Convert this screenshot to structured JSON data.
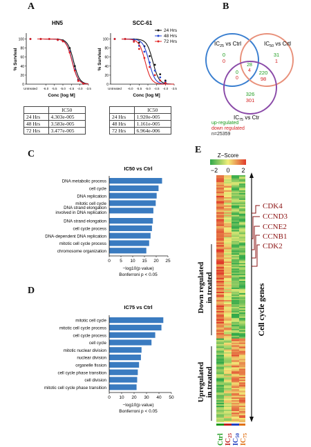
{
  "panel_letters": {
    "a": "A",
    "b": "B",
    "c": "C",
    "d": "D",
    "e": "E"
  },
  "panel_a": {
    "y_label": "% Survival",
    "x_label": "Conc [log M]",
    "untreated_label": "Untreated",
    "y_ticks": [
      "0",
      "20",
      "40",
      "60",
      "80",
      "100"
    ],
    "x_ticks": [
      "-6.0",
      "-5.5",
      "-5.0",
      "-4.5",
      "-4.0",
      "-3.5"
    ],
    "legend": [
      {
        "label": "24 Hrs",
        "color": "#111111"
      },
      {
        "label": "48 Hrs",
        "color": "#1f3fd1"
      },
      {
        "label": "72 Hrs",
        "color": "#e02020"
      }
    ],
    "table_header": "IC50"
  },
  "chart_data": [
    {
      "type": "line",
      "title": "HN5",
      "xlabel": "Conc [log M]",
      "ylabel": "% Survival",
      "ylim": [
        0,
        110
      ],
      "series": [
        {
          "name": "24 Hrs",
          "color": "#111111",
          "log_ic50": -4.366,
          "points": [
            [
              -6.3,
              100
            ],
            [
              -5.8,
              100
            ],
            [
              -5.3,
              99
            ],
            [
              -5.0,
              97
            ],
            [
              -4.6,
              80
            ],
            [
              -4.3,
              40
            ],
            [
              -4.1,
              10
            ],
            [
              -3.8,
              2
            ]
          ]
        },
        {
          "name": "48 Hrs",
          "color": "#1f3fd1",
          "log_ic50": -4.446,
          "points": [
            [
              -6.3,
              100
            ],
            [
              -5.8,
              100
            ],
            [
              -5.3,
              98
            ],
            [
              -5.0,
              95
            ],
            [
              -4.6,
              72
            ],
            [
              -4.3,
              32
            ],
            [
              -4.1,
              8
            ],
            [
              -3.8,
              1
            ]
          ]
        },
        {
          "name": "72 Hrs",
          "color": "#e02020",
          "log_ic50": -4.459,
          "points": [
            [
              -6.3,
              100
            ],
            [
              -5.8,
              100
            ],
            [
              -5.3,
              98
            ],
            [
              -5.0,
              95
            ],
            [
              -4.6,
              70
            ],
            [
              -4.3,
              30
            ],
            [
              -4.1,
              7
            ],
            [
              -3.8,
              1
            ]
          ]
        }
      ],
      "ic50_table": [
        [
          "24 Hrs",
          "4.303e-005"
        ],
        [
          "48 Hrs",
          "3.583e-005"
        ],
        [
          "72 Hrs",
          "3.477e-005"
        ]
      ]
    },
    {
      "type": "line",
      "title": "SCC-61",
      "xlabel": "Conc [log M]",
      "ylabel": "% Survival",
      "ylim": [
        0,
        110
      ],
      "series": [
        {
          "name": "24 Hrs",
          "color": "#111111",
          "log_ic50": -4.717,
          "points": [
            [
              -6.3,
              100
            ],
            [
              -5.8,
              99
            ],
            [
              -5.5,
              92
            ],
            [
              -5.2,
              84
            ],
            [
              -4.9,
              62
            ],
            [
              -4.6,
              43
            ],
            [
              -4.3,
              22
            ],
            [
              -4.0,
              8
            ]
          ]
        },
        {
          "name": "48 Hrs",
          "color": "#1f3fd1",
          "log_ic50": -4.935,
          "points": [
            [
              -6.3,
              100
            ],
            [
              -5.8,
              97
            ],
            [
              -5.5,
              85
            ],
            [
              -5.2,
              72
            ],
            [
              -4.9,
              48
            ],
            [
              -4.6,
              30
            ],
            [
              -4.3,
              15
            ],
            [
              -4.0,
              5
            ]
          ]
        },
        {
          "name": "72 Hrs",
          "color": "#e02020",
          "log_ic50": -5.157,
          "points": [
            [
              -6.3,
              100
            ],
            [
              -5.8,
              94
            ],
            [
              -5.5,
              78
            ],
            [
              -5.2,
              58
            ],
            [
              -4.9,
              38
            ],
            [
              -4.6,
              20
            ],
            [
              -4.3,
              8
            ],
            [
              -4.0,
              3
            ]
          ]
        }
      ],
      "ic50_table": [
        [
          "24 Hrs",
          "1.920e-005"
        ],
        [
          "48 Hrs",
          "1.161e-005"
        ],
        [
          "72 Hrs",
          "6.964e-006"
        ]
      ]
    },
    {
      "type": "bar",
      "title": "IC50 vs Ctrl",
      "xlabel": "−log10(p value)",
      "note": "Bonferroni p < 0.05",
      "xlim": [
        0,
        25
      ],
      "x_ticks": [
        "0",
        "5",
        "10",
        "15",
        "20",
        "25"
      ],
      "categories": [
        "DNA metabolic process",
        "cell cycle",
        "DNA replication",
        "mitotic cell cycle",
        "DNA strand elongation involved in DNA replication",
        "DNA strand elongation",
        "cell cycle process",
        "DNA-dependent DNA replication",
        "mitotic cell cycle process",
        "chromosome organization"
      ],
      "values": [
        22.5,
        21.0,
        20.2,
        19.8,
        18.8,
        18.6,
        18.2,
        17.6,
        17.0,
        15.8
      ]
    },
    {
      "type": "bar",
      "title": "IC75 vs Ctrl",
      "xlabel": "−log10(p value)",
      "note": "Bonferroni p < 0.05",
      "xlim": [
        0,
        50
      ],
      "x_ticks": [
        "0",
        "10",
        "20",
        "30",
        "40",
        "50"
      ],
      "categories": [
        "mitotic cell cycle",
        "mitotic cell cycle process",
        "cell cycle process",
        "cell cycle",
        "mitotic nuclear division",
        "nuclear division",
        "organelle fission",
        "cell cycle phase transition",
        "cell division",
        "mitotic cell cycle phase transition"
      ],
      "values": [
        43.5,
        42.0,
        37.0,
        34.0,
        26.0,
        25.5,
        24.0,
        23.0,
        22.5,
        22.0
      ]
    },
    {
      "type": "heatmap",
      "title": "Z−Score",
      "scale_ticks": [
        "−2",
        "0",
        "2"
      ],
      "columns": [
        "Ctrl",
        "IC25",
        "IC50",
        "IC75"
      ],
      "column_colors": [
        "#1a9a1a",
        "#c02020",
        "#2040c0",
        "#e07010"
      ],
      "row_groups": [
        "Down regulated in treated",
        "Upregulated in treated"
      ],
      "group_label": "Cell cycle genes",
      "highlighted_genes": [
        "CDK4",
        "CCND3",
        "CCNE2",
        "CCNB1",
        "CDK2"
      ]
    }
  ],
  "venn": {
    "labels": {
      "ic25": "IC25 vs Ctrl",
      "ic50": "IC50 vs Crtl",
      "ic75": "IC75 vs Ctr"
    },
    "regions": {
      "ic25_only": [
        "0",
        "0"
      ],
      "ic50_only": [
        "31",
        "1"
      ],
      "ic75_only": [
        "326",
        "301"
      ],
      "ic25_ic75": [
        "0",
        "0"
      ],
      "ic50_ic75": [
        "220",
        "98"
      ],
      "all_three": [
        "28",
        "4"
      ]
    },
    "legend_up": "up-regulated",
    "legend_down": "down regulated",
    "n_label": "n=25359",
    "colors": {
      "ic25": "#3a7fd0",
      "ic50": "#e8907a",
      "ic75": "#8a4aa8",
      "up": "#1a9a1a",
      "down": "#d42020"
    }
  },
  "heatmap_text": {
    "col_ctrl": "Ctrl",
    "col_ic25": "IC",
    "col_ic25_sub": "25",
    "col_ic50": "IC",
    "col_ic50_sub": "50",
    "col_ic75": "IC",
    "col_ic75_sub": "75"
  }
}
